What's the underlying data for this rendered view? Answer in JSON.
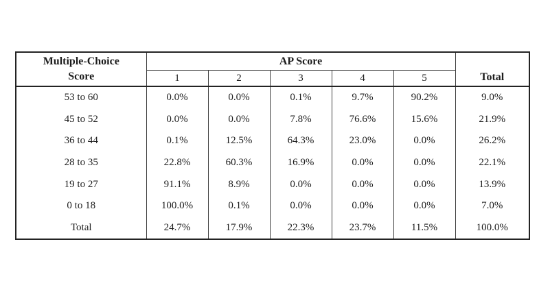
{
  "chart_data": {
    "type": "table",
    "title": "",
    "corner_header_line1": "Multiple-Choice",
    "corner_header_line2": "Score",
    "group_header": "AP Score",
    "score_columns": [
      "1",
      "2",
      "3",
      "4",
      "5"
    ],
    "total_header": "Total",
    "rows": [
      {
        "label": "53 to 60",
        "values": [
          "0.0%",
          "0.0%",
          "0.1%",
          "9.7%",
          "90.2%"
        ],
        "total": "9.0%"
      },
      {
        "label": "45 to 52",
        "values": [
          "0.0%",
          "0.0%",
          "7.8%",
          "76.6%",
          "15.6%"
        ],
        "total": "21.9%"
      },
      {
        "label": "36 to 44",
        "values": [
          "0.1%",
          "12.5%",
          "64.3%",
          "23.0%",
          "0.0%"
        ],
        "total": "26.2%"
      },
      {
        "label": "28 to 35",
        "values": [
          "22.8%",
          "60.3%",
          "16.9%",
          "0.0%",
          "0.0%"
        ],
        "total": "22.1%"
      },
      {
        "label": "19 to 27",
        "values": [
          "91.1%",
          "8.9%",
          "0.0%",
          "0.0%",
          "0.0%"
        ],
        "total": "13.9%"
      },
      {
        "label": "0 to 18",
        "values": [
          "100.0%",
          "0.1%",
          "0.0%",
          "0.0%",
          "0.0%"
        ],
        "total": "7.0%"
      },
      {
        "label": "Total",
        "values": [
          "24.7%",
          "17.9%",
          "22.3%",
          "23.7%",
          "11.5%"
        ],
        "total": "100.0%"
      }
    ],
    "colors": {
      "text": "#1c1c1c",
      "border_thin": "#3d3d3d",
      "border_thick": "#232323",
      "background": "#ffffff"
    }
  }
}
